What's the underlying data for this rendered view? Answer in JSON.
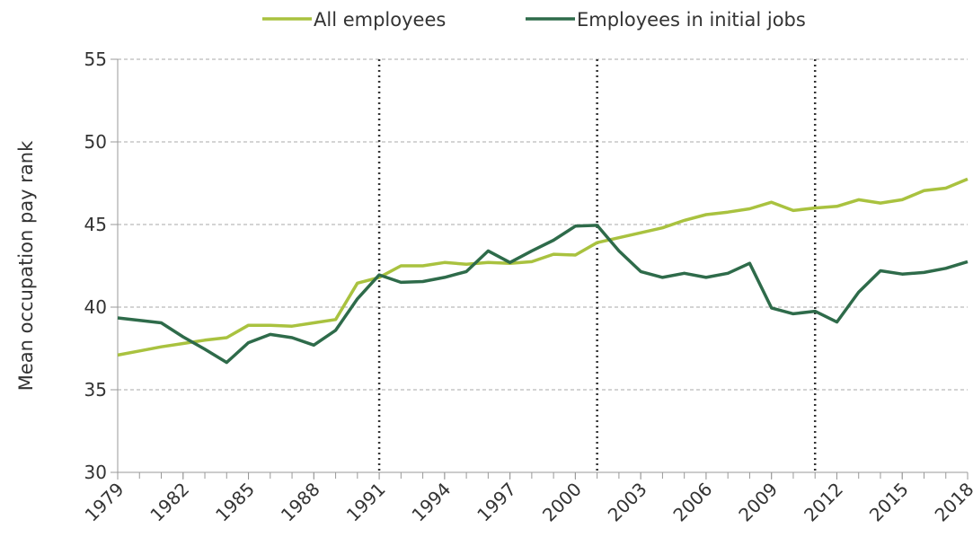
{
  "chart_data": {
    "type": "line",
    "ylabel": "Mean occupation pay rank",
    "x": [
      1979,
      1980,
      1981,
      1982,
      1983,
      1984,
      1985,
      1986,
      1987,
      1988,
      1989,
      1990,
      1991,
      1992,
      1993,
      1994,
      1995,
      1996,
      1997,
      1998,
      1999,
      2000,
      2001,
      2002,
      2003,
      2004,
      2005,
      2006,
      2007,
      2008,
      2009,
      2010,
      2011,
      2012,
      2013,
      2014,
      2015,
      2016,
      2017,
      2018
    ],
    "series": [
      {
        "name": "All employees",
        "color": "#a9c23f",
        "values": [
          37.1,
          37.35,
          37.6,
          37.8,
          38.0,
          38.15,
          38.9,
          38.9,
          38.85,
          39.05,
          39.25,
          41.45,
          41.8,
          42.5,
          42.5,
          42.7,
          42.6,
          42.7,
          42.65,
          42.75,
          43.2,
          43.15,
          43.9,
          44.2,
          44.5,
          44.8,
          45.25,
          45.6,
          45.75,
          45.95,
          46.35,
          45.85,
          46.0,
          46.1,
          46.5,
          46.3,
          46.5,
          47.05,
          47.2,
          47.75
        ]
      },
      {
        "name": "Employees in initial jobs",
        "color": "#2e6b4a",
        "values": [
          39.35,
          39.2,
          39.05,
          38.2,
          37.45,
          36.65,
          37.85,
          38.35,
          38.15,
          37.7,
          38.6,
          40.5,
          41.95,
          41.5,
          41.55,
          41.8,
          42.15,
          43.4,
          42.7,
          43.4,
          44.05,
          44.9,
          44.95,
          43.4,
          42.15,
          41.8,
          42.05,
          41.8,
          42.05,
          42.65,
          39.95,
          39.6,
          39.75,
          39.1,
          40.9,
          42.2,
          42.0,
          42.1,
          42.35,
          42.75
        ]
      }
    ],
    "xlim": [
      1979,
      2018
    ],
    "xticks": [
      1979,
      1982,
      1985,
      1988,
      1991,
      1994,
      1997,
      2000,
      2003,
      2006,
      2009,
      2012,
      2015,
      2018
    ],
    "ylim": [
      30,
      55
    ],
    "yticks": [
      30,
      35,
      40,
      45,
      50,
      55
    ],
    "grid": true,
    "vlines": [
      1991,
      2001,
      2011
    ],
    "legend": "top"
  }
}
